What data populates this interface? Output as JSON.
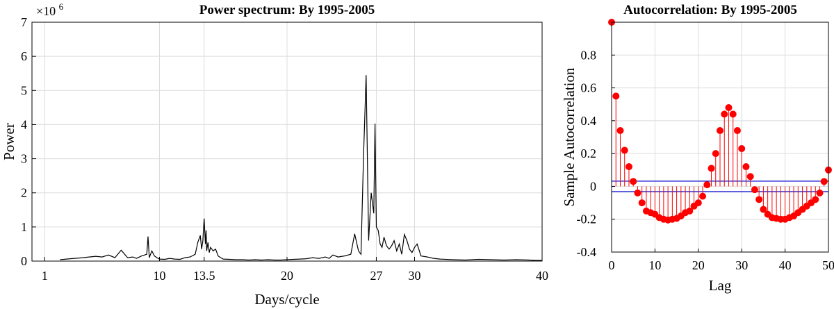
{
  "chart_data": [
    {
      "type": "line",
      "title": "Power spectrum: By 1995-2005",
      "xlabel": "Days/cycle",
      "ylabel": "Power",
      "y_exponent_label": "×10",
      "y_exponent": "6",
      "xlim": [
        0,
        40
      ],
      "ylim": [
        0,
        7
      ],
      "xticks": [
        {
          "value": 1,
          "label": "1"
        },
        {
          "value": 10,
          "label": "10"
        },
        {
          "value": 13.5,
          "label": "13.5"
        },
        {
          "value": 20,
          "label": "20"
        },
        {
          "value": 27,
          "label": "27"
        },
        {
          "value": 30,
          "label": "30"
        },
        {
          "value": 40,
          "label": "40"
        }
      ],
      "yticks": [
        0,
        1,
        2,
        3,
        4,
        5,
        6,
        7
      ],
      "grid": true,
      "line_color": "#000000",
      "series": [
        {
          "x": [
            2.2,
            3,
            4,
            5,
            5.5,
            6,
            6.5,
            7,
            7.5,
            7.9,
            8.2,
            8.6,
            9,
            9.1,
            9.2,
            9.4,
            9.6,
            9.8,
            10,
            10.4,
            10.8,
            11.2,
            11.6,
            12,
            12.4,
            12.8,
            13.0,
            13.2,
            13.3,
            13.4,
            13.5,
            13.6,
            13.65,
            13.7,
            13.8,
            13.9,
            14.0,
            14.2,
            14.4,
            14.6,
            14.8,
            15,
            15.5,
            16,
            16.5,
            17,
            17.5,
            18,
            18.5,
            19,
            19.5,
            20,
            20.5,
            21,
            21.5,
            22,
            22.5,
            23,
            23.3,
            23.6,
            24,
            24.5,
            25,
            25.3,
            25.6,
            25.8,
            26.0,
            26.2,
            26.4,
            26.6,
            26.8,
            26.9,
            27.0,
            27.15,
            27.3,
            27.45,
            27.6,
            27.8,
            28.0,
            28.2,
            28.4,
            28.6,
            28.8,
            29.0,
            29.2,
            29.4,
            29.6,
            29.8,
            30.0,
            30.2,
            30.5,
            31,
            31.5,
            32,
            33,
            34,
            35,
            36,
            37,
            38,
            39,
            39.5,
            40
          ],
          "y": [
            0.04,
            0.07,
            0.1,
            0.14,
            0.12,
            0.18,
            0.1,
            0.32,
            0.1,
            0.12,
            0.08,
            0.15,
            0.2,
            0.72,
            0.1,
            0.3,
            0.15,
            0.1,
            0.06,
            0.05,
            0.08,
            0.06,
            0.05,
            0.1,
            0.12,
            0.2,
            0.55,
            0.75,
            0.35,
            0.6,
            1.25,
            0.5,
            0.9,
            0.3,
            0.55,
            0.25,
            0.4,
            0.3,
            0.35,
            0.15,
            0.1,
            0.06,
            0.05,
            0.04,
            0.04,
            0.03,
            0.04,
            0.03,
            0.04,
            0.03,
            0.03,
            0.04,
            0.05,
            0.06,
            0.07,
            0.1,
            0.08,
            0.12,
            0.08,
            0.18,
            0.12,
            0.15,
            0.2,
            0.8,
            0.3,
            0.2,
            3.1,
            5.45,
            0.6,
            2.0,
            1.4,
            4.03,
            1.0,
            0.9,
            0.5,
            0.4,
            0.7,
            0.45,
            0.35,
            0.45,
            0.6,
            0.3,
            0.5,
            0.2,
            0.78,
            0.6,
            0.35,
            0.25,
            0.4,
            0.5,
            0.15,
            0.12,
            0.08,
            0.06,
            0.04,
            0.03,
            0.05,
            0.04,
            0.03,
            0.04,
            0.03,
            0.02,
            0.02
          ]
        }
      ]
    },
    {
      "type": "stem",
      "title": "Autocorrelation: By 1995-2005",
      "xlabel": "Lag",
      "ylabel": "Sample Autocorrelation",
      "xlim": [
        0,
        50
      ],
      "ylim": [
        -0.4,
        1.0
      ],
      "xticks": [
        0,
        10,
        20,
        30,
        40,
        50
      ],
      "yticks": [
        -0.4,
        -0.2,
        0,
        0.2,
        0.4,
        0.6,
        0.8
      ],
      "ytick_labels": [
        "-0.4",
        "-0.2",
        "0",
        "0.2",
        "0.4",
        "0.6",
        "0.8"
      ],
      "grid": true,
      "stem_color": "#ff0000",
      "bound_color": "#0000cc",
      "confidence_bounds": [
        0.032,
        -0.032
      ],
      "series": [
        {
          "x": [
            0,
            1,
            2,
            3,
            4,
            5,
            6,
            7,
            8,
            9,
            10,
            11,
            12,
            13,
            14,
            15,
            16,
            17,
            18,
            19,
            20,
            21,
            22,
            23,
            24,
            25,
            26,
            27,
            28,
            29,
            30,
            31,
            32,
            33,
            34,
            35,
            36,
            37,
            38,
            39,
            40,
            41,
            42,
            43,
            44,
            45,
            46,
            47,
            48,
            49,
            50
          ],
          "y": [
            1.0,
            0.55,
            0.34,
            0.22,
            0.12,
            0.03,
            -0.04,
            -0.1,
            -0.15,
            -0.16,
            -0.17,
            -0.19,
            -0.2,
            -0.205,
            -0.2,
            -0.195,
            -0.18,
            -0.16,
            -0.15,
            -0.12,
            -0.1,
            -0.06,
            0.01,
            0.11,
            0.2,
            0.34,
            0.44,
            0.48,
            0.44,
            0.34,
            0.23,
            0.12,
            0.06,
            -0.02,
            -0.08,
            -0.14,
            -0.17,
            -0.19,
            -0.195,
            -0.2,
            -0.2,
            -0.19,
            -0.18,
            -0.16,
            -0.14,
            -0.12,
            -0.1,
            -0.08,
            -0.04,
            0.03,
            0.1
          ]
        }
      ]
    }
  ]
}
